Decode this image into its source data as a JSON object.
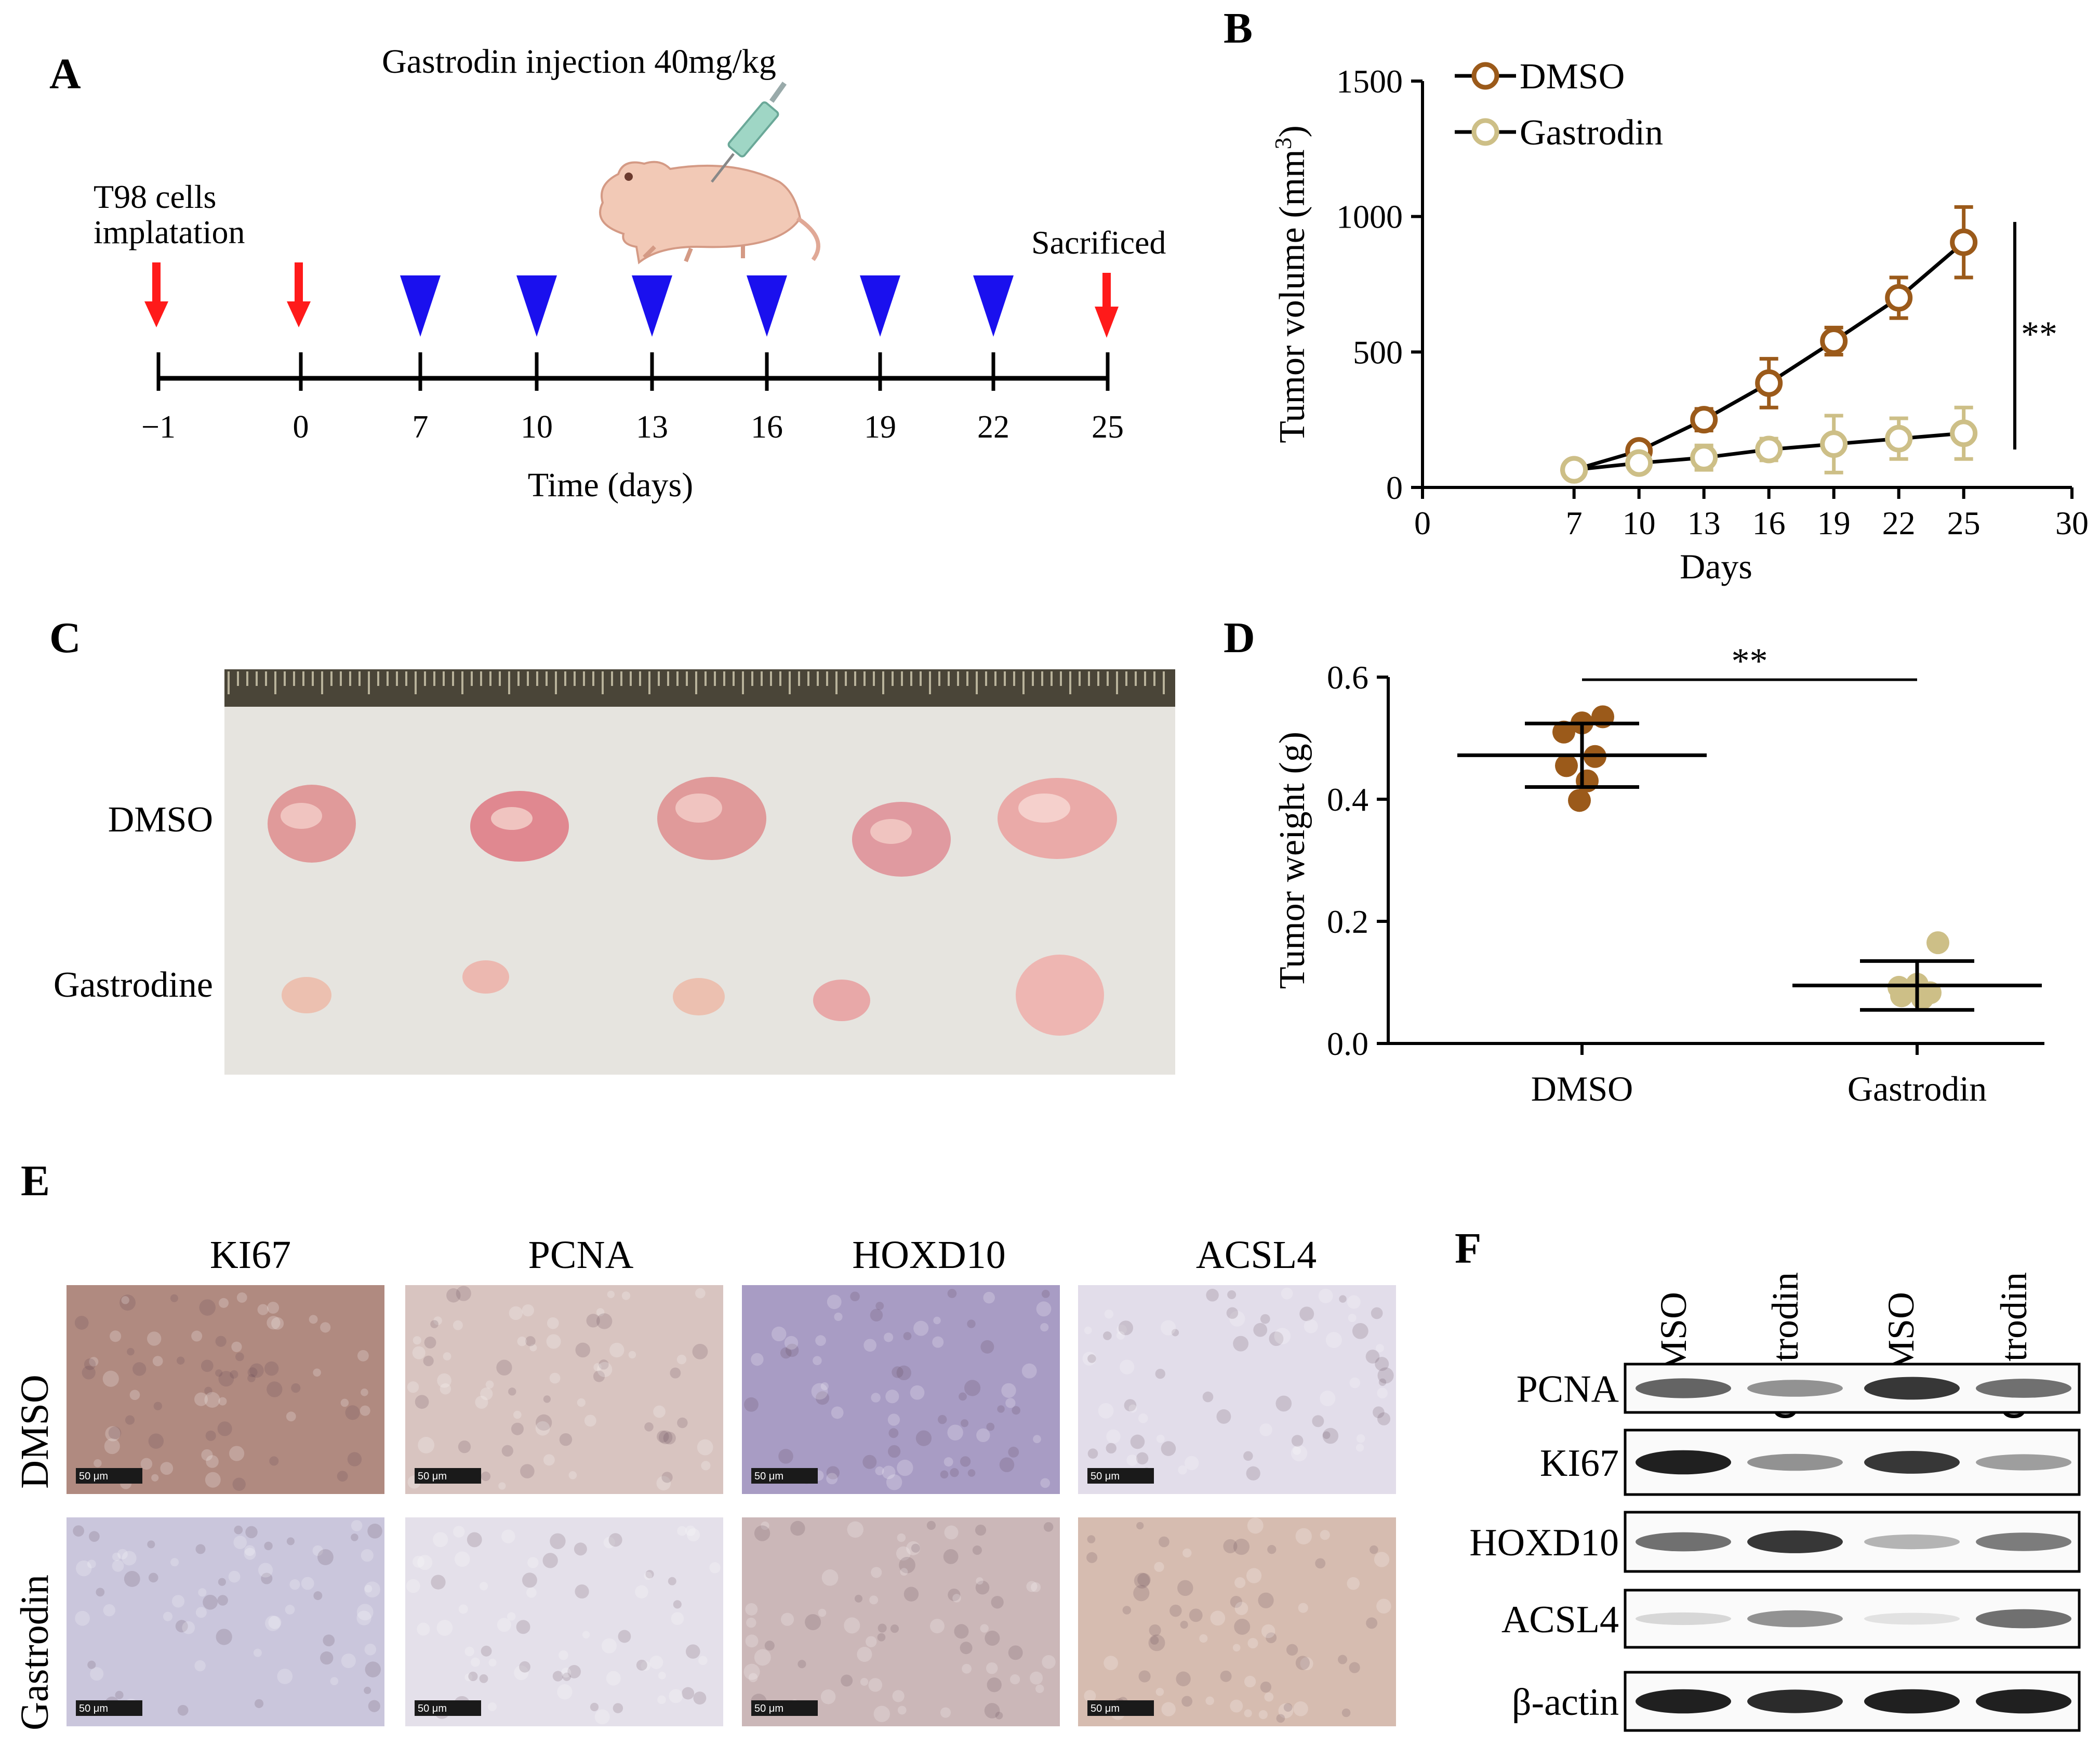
{
  "panel_labels": {
    "a": "A",
    "b": "B",
    "c": "C",
    "d": "D",
    "e": "E",
    "f": "F"
  },
  "timeline": {
    "treatment_label": "Gastrodin   injection 40mg/kg",
    "implant_label_1": "T98 cells",
    "implant_label_2": "implatation",
    "sacrifice_label": "Sacrificed",
    "ticks": [
      "−1",
      "0",
      "7",
      "10",
      "13",
      "16",
      "19",
      "22",
      "25"
    ],
    "xlabel": "Time (days)",
    "arrow_color": "#ff1a1a",
    "triangle_color": "#1a10ee"
  },
  "chart_data": [
    {
      "id": "tumor-volume",
      "type": "line",
      "xlabel": "Days",
      "ylabel": "Tumor volume (mm",
      "ylabel_sup": "3",
      "ylabel_close": ")",
      "xlim": [
        0,
        30
      ],
      "ylim": [
        0,
        1500
      ],
      "xticks": [
        0,
        7,
        10,
        13,
        16,
        19,
        22,
        25,
        30
      ],
      "yticks": [
        0,
        500,
        1000,
        1500
      ],
      "significance": "**",
      "series": [
        {
          "name": "DMSO",
          "color": "#9b5a1a",
          "x": [
            7,
            10,
            13,
            16,
            19,
            22,
            25
          ],
          "y": [
            65,
            135,
            250,
            385,
            540,
            700,
            905
          ],
          "err": [
            10,
            25,
            40,
            90,
            50,
            75,
            130
          ]
        },
        {
          "name": "Gastrodin",
          "color": "#cdbf87",
          "x": [
            7,
            10,
            13,
            16,
            19,
            22,
            25
          ],
          "y": [
            65,
            90,
            110,
            140,
            160,
            180,
            200
          ],
          "err": [
            10,
            20,
            45,
            40,
            105,
            75,
            95
          ]
        }
      ]
    },
    {
      "id": "tumor-weight",
      "type": "scatter",
      "ylabel": "Tumor weight (g)",
      "ylim": [
        0,
        0.6
      ],
      "yticks": [
        "0.0",
        "0.2",
        "0.4",
        "0.6"
      ],
      "categories": [
        "DMSO",
        "Gastrodin"
      ],
      "significance": "**",
      "groups": [
        {
          "name": "DMSO",
          "color": "#9b5a1a",
          "mean": 0.472,
          "sd": 0.052,
          "points": [
            0.535,
            0.525,
            0.51,
            0.47,
            0.455,
            0.43,
            0.398
          ]
        },
        {
          "name": "Gastrodin",
          "color": "#cdbf87",
          "mean": 0.095,
          "sd": 0.04,
          "points": [
            0.165,
            0.097,
            0.092,
            0.083,
            0.078,
            0.074
          ]
        }
      ]
    }
  ],
  "photo": {
    "row_labels": [
      "DMSO",
      "Gastrodine"
    ],
    "background": "#d9d7d1",
    "ruler_color": "#4a4538",
    "tumor_color": "#e09a9a"
  },
  "ihc": {
    "stains": [
      "KI67",
      "PCNA",
      "HOXD10",
      "ACSL4"
    ],
    "rows": [
      "DMSO",
      "Gastrodin"
    ],
    "scale_bar": "50 μm",
    "colors": {
      "dmso": [
        "#b08a80",
        "#d8c4c0",
        "#a89cc4",
        "#e2ddea"
      ],
      "gastrodin": [
        "#cac6dc",
        "#e4e0ea",
        "#cbb7b8",
        "#d6bcb0"
      ]
    }
  },
  "western": {
    "lanes": [
      "DMSO",
      "Gastrodin",
      "DMSO",
      "Gastrodin"
    ],
    "proteins": [
      "PCNA",
      "KI67",
      "HOXD10",
      "ACSL4",
      "β-actin"
    ],
    "band_intensity": [
      [
        0.65,
        0.45,
        0.85,
        0.6
      ],
      [
        0.95,
        0.45,
        0.85,
        0.4
      ],
      [
        0.6,
        0.85,
        0.3,
        0.55
      ],
      [
        0.15,
        0.45,
        0.1,
        0.6
      ],
      [
        0.95,
        0.9,
        0.95,
        0.95
      ]
    ]
  }
}
